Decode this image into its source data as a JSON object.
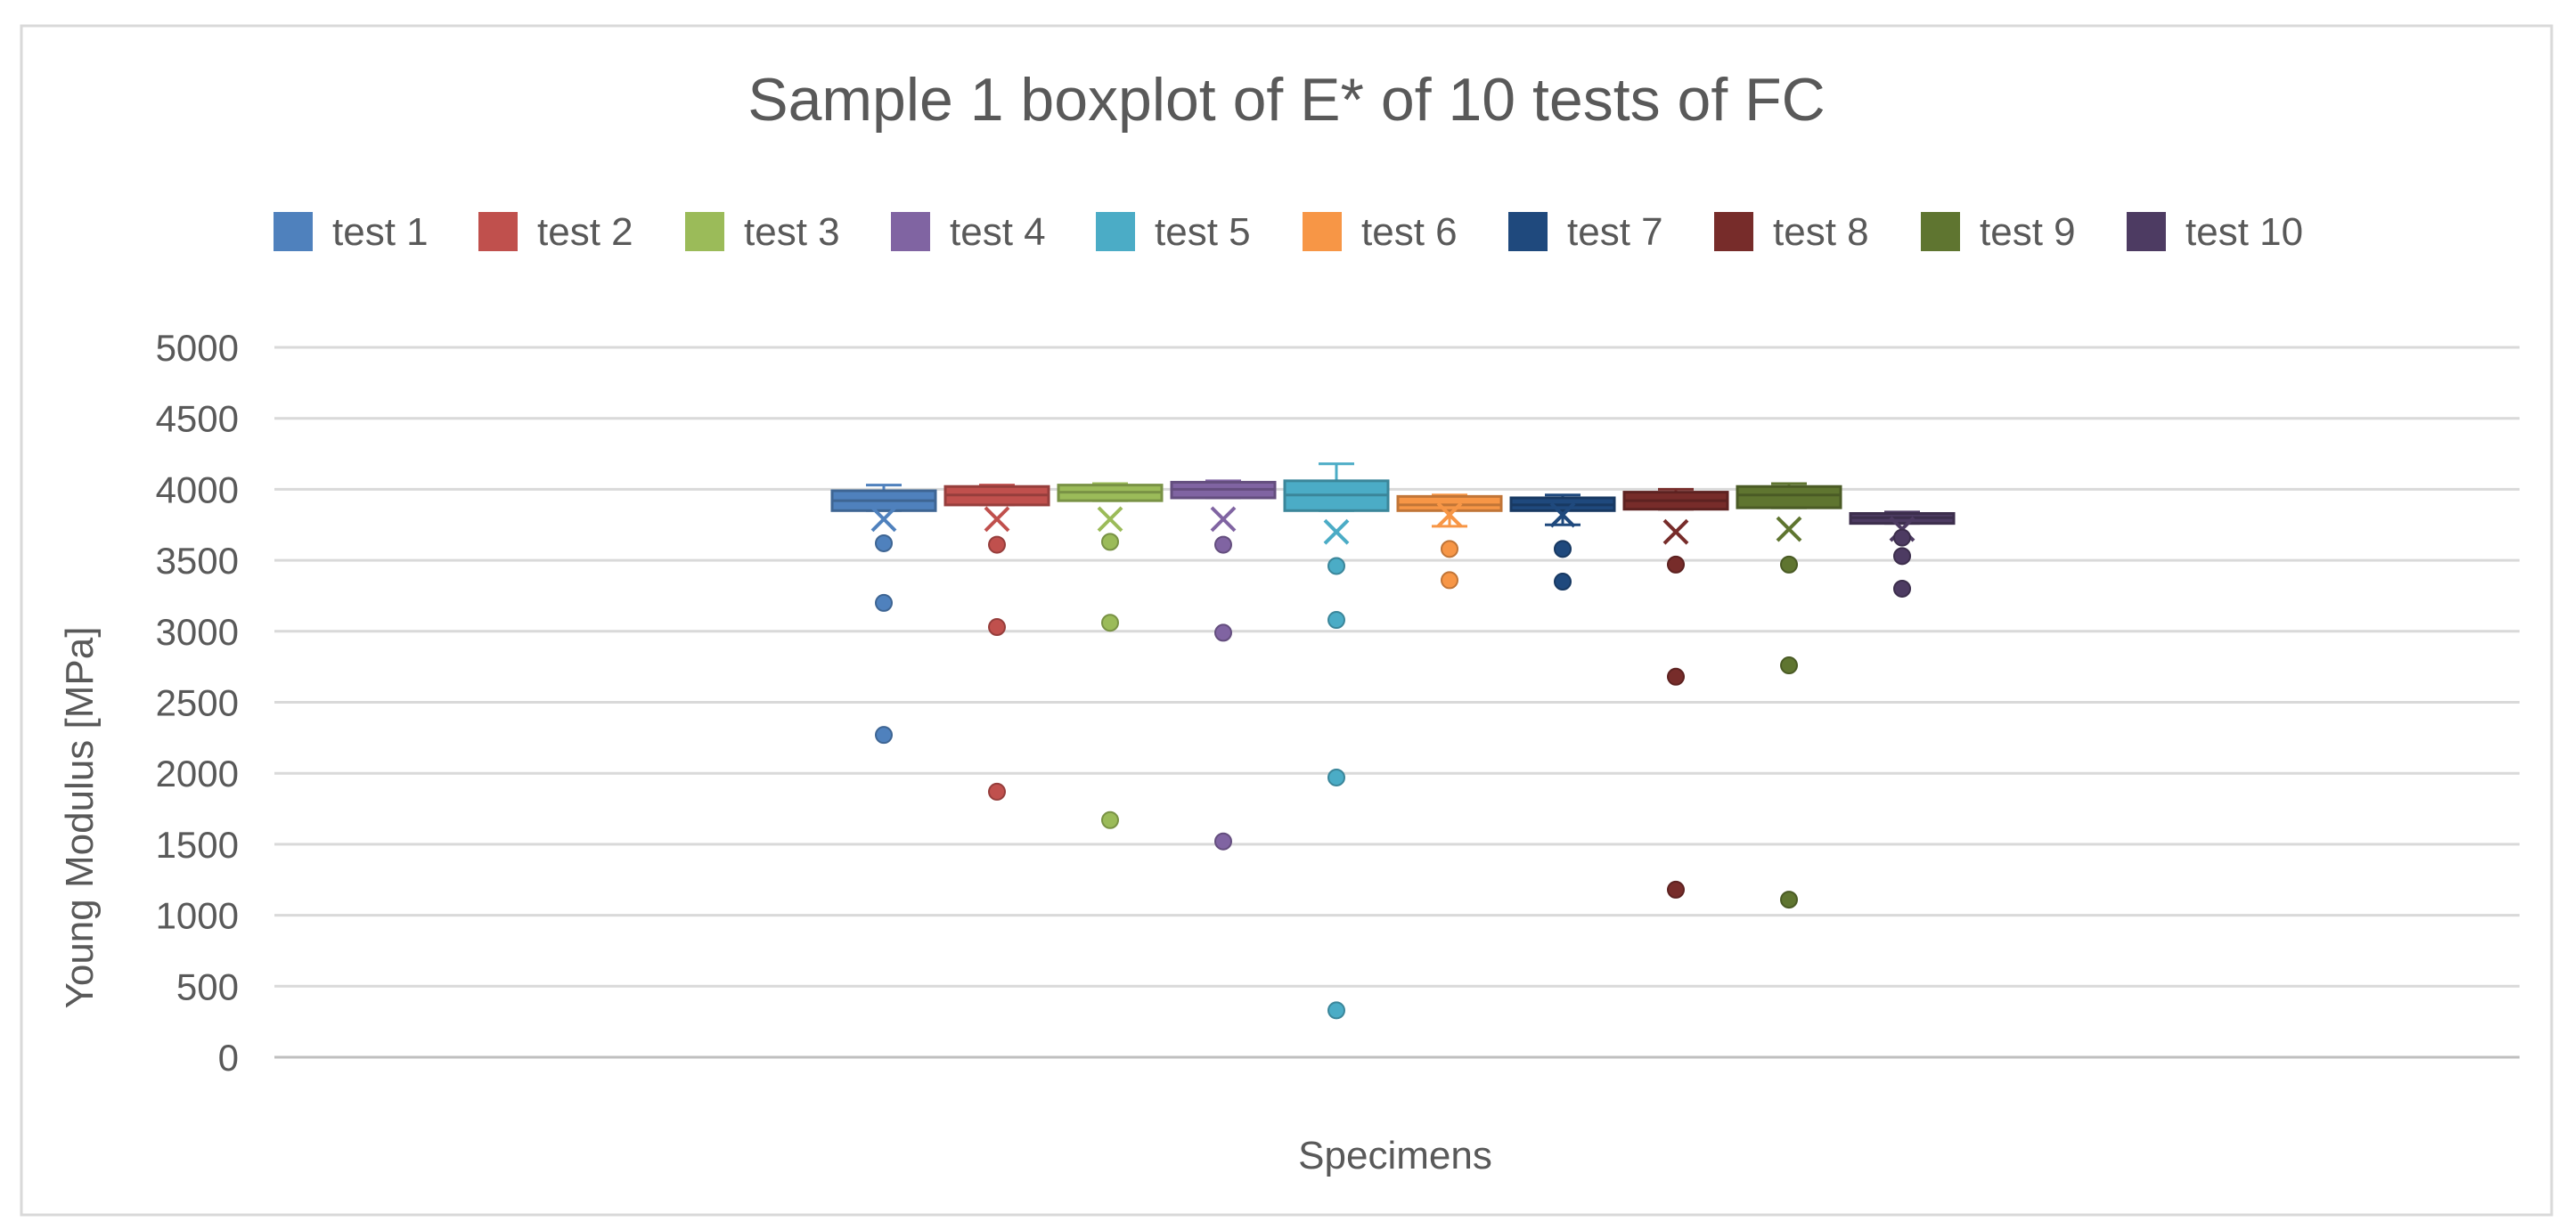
{
  "chart_data": {
    "type": "boxplot",
    "title": "Sample 1 boxplot of E* of 10 tests of FC",
    "xlabel": "Specimens",
    "ylabel": "Young Modulus [MPa]",
    "ylim": [
      0,
      5000
    ],
    "yticks": [
      0,
      500,
      1000,
      1500,
      2000,
      2500,
      3000,
      3500,
      4000,
      4500,
      5000
    ],
    "grid": true,
    "legend_position": "top",
    "series": [
      {
        "name": "test 1",
        "color": "#4f81bd",
        "whisker_low": 3850,
        "q1": 3850,
        "median": 3920,
        "q3": 3990,
        "whisker_high": 4030,
        "mean": 3790,
        "outliers": [
          3620,
          3200,
          2270
        ]
      },
      {
        "name": "test 2",
        "color": "#c0504d",
        "whisker_low": 3890,
        "q1": 3890,
        "median": 3960,
        "q3": 4020,
        "whisker_high": 4030,
        "mean": 3790,
        "outliers": [
          3610,
          3030,
          1870
        ]
      },
      {
        "name": "test 3",
        "color": "#9bbb59",
        "whisker_low": 3920,
        "q1": 3920,
        "median": 3980,
        "q3": 4030,
        "whisker_high": 4040,
        "mean": 3790,
        "outliers": [
          3630,
          3060,
          1670
        ]
      },
      {
        "name": "test 4",
        "color": "#8064a2",
        "whisker_low": 3940,
        "q1": 3940,
        "median": 4000,
        "q3": 4050,
        "whisker_high": 4060,
        "mean": 3790,
        "outliers": [
          3610,
          2990,
          1520
        ]
      },
      {
        "name": "test 5",
        "color": "#4bacc6",
        "whisker_low": 3850,
        "q1": 3850,
        "median": 3960,
        "q3": 4060,
        "whisker_high": 4180,
        "mean": 3700,
        "outliers": [
          3460,
          3080,
          1970,
          330
        ]
      },
      {
        "name": "test 6",
        "color": "#f79646",
        "whisker_low": 3740,
        "q1": 3850,
        "median": 3890,
        "q3": 3950,
        "whisker_high": 3960,
        "mean": 3820,
        "outliers": [
          3580,
          3360
        ]
      },
      {
        "name": "test 7",
        "color": "#1f497d",
        "whisker_low": 3750,
        "q1": 3850,
        "median": 3890,
        "q3": 3940,
        "whisker_high": 3960,
        "mean": 3820,
        "outliers": [
          3580,
          3350
        ]
      },
      {
        "name": "test 8",
        "color": "#772c2a",
        "whisker_low": 3860,
        "q1": 3860,
        "median": 3920,
        "q3": 3980,
        "whisker_high": 4000,
        "mean": 3700,
        "outliers": [
          3470,
          2680,
          1180
        ]
      },
      {
        "name": "test 9",
        "color": "#5f7530",
        "whisker_low": 3870,
        "q1": 3870,
        "median": 3960,
        "q3": 4020,
        "whisker_high": 4040,
        "mean": 3720,
        "outliers": [
          3470,
          2760,
          1110
        ]
      },
      {
        "name": "test 10",
        "color": "#4d3b62",
        "whisker_low": 3760,
        "q1": 3760,
        "median": 3800,
        "q3": 3830,
        "whisker_high": 3840,
        "mean": 3720,
        "outliers": [
          3660,
          3530,
          3300
        ]
      }
    ]
  }
}
